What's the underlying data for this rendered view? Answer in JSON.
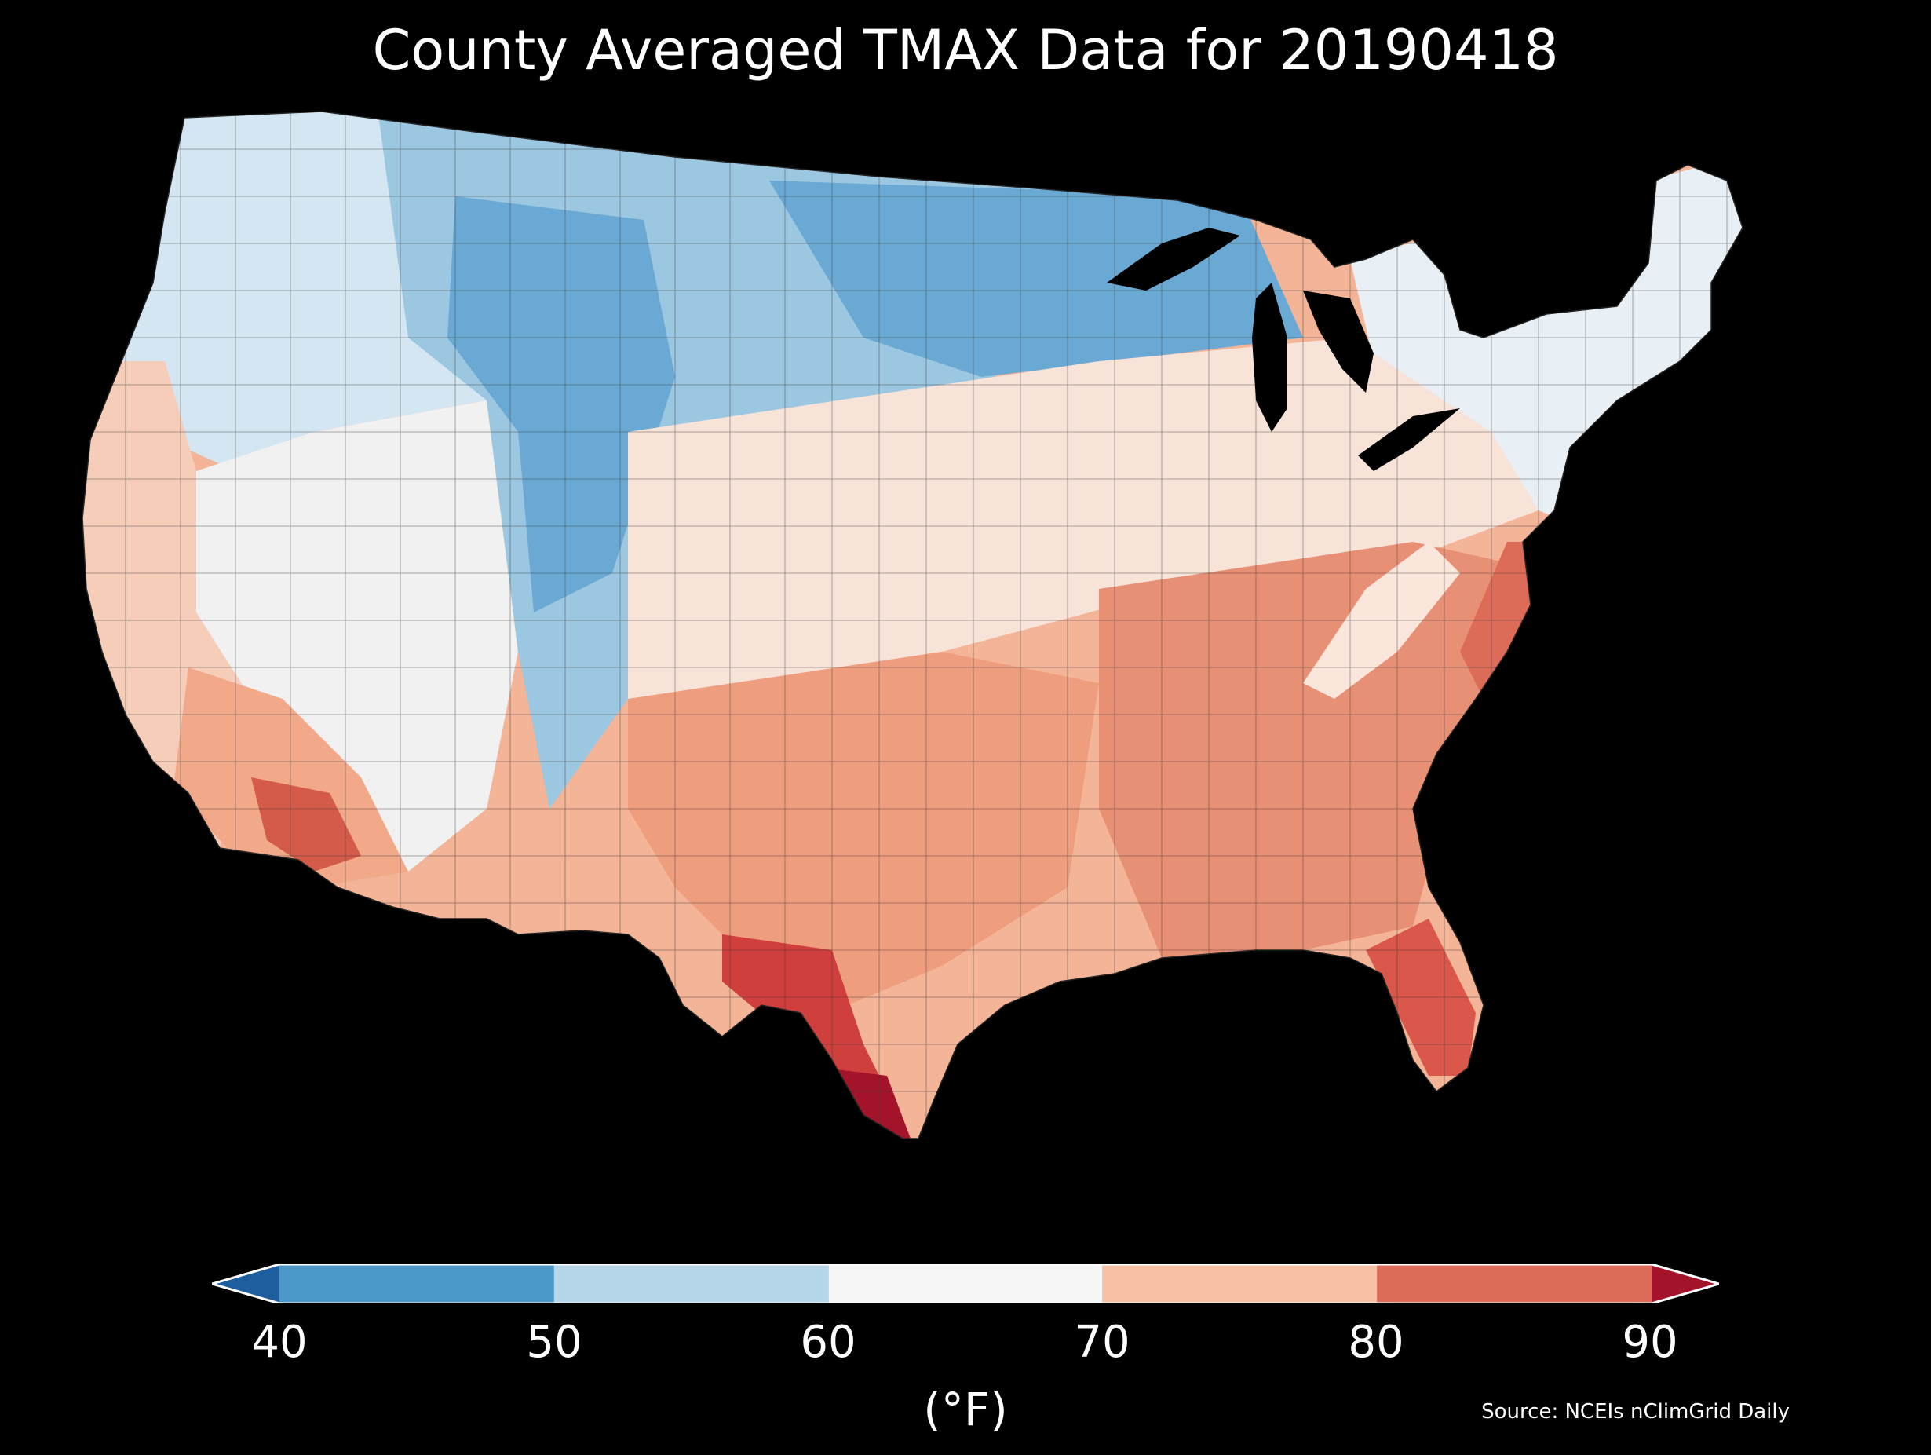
{
  "title": "County Averaged TMAX Data for 20190418",
  "colorbar": {
    "unit_label": "(°F)",
    "ticks": [
      "40",
      "50",
      "60",
      "70",
      "80",
      "90"
    ],
    "bins": [
      {
        "range": [
          40,
          50
        ],
        "color": "#4b98c9"
      },
      {
        "range": [
          50,
          60
        ],
        "color": "#b6d7e9"
      },
      {
        "range": [
          60,
          70
        ],
        "color": "#f7f6f6"
      },
      {
        "range": [
          70,
          80
        ],
        "color": "#f8c1a6"
      },
      {
        "range": [
          80,
          90
        ],
        "color": "#dc6b58"
      }
    ],
    "under_color": "#1f5e9e",
    "over_color": "#a3142b",
    "extend": "both"
  },
  "source": "Source: NCEIs nClimGrid Daily",
  "map": {
    "region": "contiguous United States counties",
    "background": "#000000",
    "regions": [
      {
        "name": "northern-rockies-plains",
        "color": "#9cc7e1"
      },
      {
        "name": "upper-midwest",
        "color": "#6aa9d4"
      },
      {
        "name": "pacific-northwest",
        "color": "#d4e6f2"
      },
      {
        "name": "great-basin",
        "color": "#f1f1f1"
      },
      {
        "name": "northeast",
        "color": "#e8f0f6"
      },
      {
        "name": "california-coast",
        "color": "#f6cdb9"
      },
      {
        "name": "desert-southwest",
        "color": "#f2a98a"
      },
      {
        "name": "southern-plains",
        "color": "#ee9e7e"
      },
      {
        "name": "southeast",
        "color": "#e89075"
      },
      {
        "name": "south-texas",
        "color": "#cf3f3d"
      },
      {
        "name": "florida",
        "color": "#d9574b"
      },
      {
        "name": "midwest-ohio-valley",
        "color": "#f3b497"
      }
    ]
  }
}
